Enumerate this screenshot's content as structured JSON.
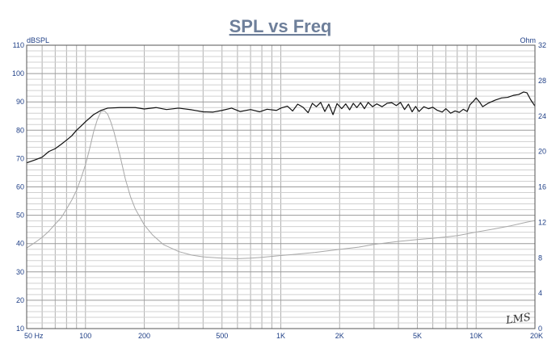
{
  "chart_data": {
    "type": "line",
    "title": "SPL vs Freq",
    "xscale": "log",
    "xlim": [
      50,
      20000
    ],
    "ylim_left": [
      10,
      110
    ],
    "ylim_right": [
      0,
      32
    ],
    "ylabel_left": "dBSPL",
    "ylabel_right": "Ohm",
    "grid": true,
    "x_ticks": [
      {
        "value": 50,
        "label": "50  Hz"
      },
      {
        "value": 100,
        "label": "100"
      },
      {
        "value": 200,
        "label": "200"
      },
      {
        "value": 500,
        "label": "500"
      },
      {
        "value": 1000,
        "label": "1K"
      },
      {
        "value": 2000,
        "label": "2K"
      },
      {
        "value": 5000,
        "label": "5K"
      },
      {
        "value": 10000,
        "label": "10K"
      },
      {
        "value": 20000,
        "label": "20K"
      }
    ],
    "y_ticks_left": [
      10,
      20,
      30,
      40,
      50,
      60,
      70,
      80,
      90,
      100,
      110
    ],
    "y_ticks_right": [
      0,
      4,
      8,
      12,
      16,
      20,
      24,
      28,
      32
    ],
    "watermark": "LMS",
    "series": [
      {
        "axis": "left",
        "color": "#111111",
        "points": [
          [
            50,
            68.5
          ],
          [
            55,
            69.5
          ],
          [
            60,
            70.5
          ],
          [
            65,
            72.5
          ],
          [
            70,
            73.5
          ],
          [
            75,
            75
          ],
          [
            80,
            76.5
          ],
          [
            85,
            78
          ],
          [
            90,
            80
          ],
          [
            95,
            81.5
          ],
          [
            100,
            83
          ],
          [
            110,
            85.5
          ],
          [
            120,
            87
          ],
          [
            130,
            87.8
          ],
          [
            150,
            88
          ],
          [
            180,
            88
          ],
          [
            200,
            87.5
          ],
          [
            230,
            88
          ],
          [
            260,
            87.3
          ],
          [
            300,
            87.8
          ],
          [
            350,
            87.2
          ],
          [
            400,
            86.5
          ],
          [
            450,
            86.4
          ],
          [
            500,
            87
          ],
          [
            560,
            87.8
          ],
          [
            620,
            86.6
          ],
          [
            700,
            87.3
          ],
          [
            780,
            86.5
          ],
          [
            850,
            87.4
          ],
          [
            950,
            87
          ],
          [
            1000,
            87.8
          ],
          [
            1080,
            88.5
          ],
          [
            1150,
            86.8
          ],
          [
            1220,
            89.2
          ],
          [
            1300,
            88.1
          ],
          [
            1380,
            86.2
          ],
          [
            1450,
            89.5
          ],
          [
            1520,
            88.3
          ],
          [
            1600,
            89.8
          ],
          [
            1680,
            86.6
          ],
          [
            1760,
            89.2
          ],
          [
            1850,
            85.5
          ],
          [
            1940,
            89.4
          ],
          [
            2050,
            87.6
          ],
          [
            2150,
            89.3
          ],
          [
            2250,
            87.2
          ],
          [
            2350,
            89.5
          ],
          [
            2450,
            88
          ],
          [
            2560,
            89.7
          ],
          [
            2680,
            87.6
          ],
          [
            2800,
            89.8
          ],
          [
            2950,
            88.3
          ],
          [
            3100,
            89.3
          ],
          [
            3300,
            88.3
          ],
          [
            3500,
            89.5
          ],
          [
            3700,
            89.7
          ],
          [
            3900,
            88.7
          ],
          [
            4100,
            89.8
          ],
          [
            4300,
            87.3
          ],
          [
            4500,
            89.2
          ],
          [
            4700,
            86.5
          ],
          [
            4900,
            88.4
          ],
          [
            5100,
            86.6
          ],
          [
            5400,
            88.3
          ],
          [
            5700,
            87.6
          ],
          [
            6000,
            88.1
          ],
          [
            6300,
            87.1
          ],
          [
            6700,
            86.4
          ],
          [
            7000,
            87.6
          ],
          [
            7400,
            86
          ],
          [
            7800,
            86.8
          ],
          [
            8200,
            86.3
          ],
          [
            8600,
            87.4
          ],
          [
            9000,
            86.6
          ],
          [
            9300,
            89
          ],
          [
            9700,
            90.3
          ],
          [
            10000,
            91.4
          ],
          [
            10400,
            90
          ],
          [
            10800,
            88.3
          ],
          [
            11500,
            89.5
          ],
          [
            12500,
            90.6
          ],
          [
            13500,
            91.4
          ],
          [
            14500,
            91.6
          ],
          [
            15500,
            92.3
          ],
          [
            16500,
            92.6
          ],
          [
            17500,
            93.5
          ],
          [
            18200,
            93.2
          ],
          [
            19000,
            90.8
          ],
          [
            20000,
            88.5
          ]
        ]
      },
      {
        "axis": "right",
        "color": "#a8a8a8",
        "points": [
          [
            50,
            9.1
          ],
          [
            55,
            9.7
          ],
          [
            60,
            10.3
          ],
          [
            65,
            11
          ],
          [
            70,
            11.8
          ],
          [
            75,
            12.5
          ],
          [
            80,
            13.5
          ],
          [
            85,
            14.5
          ],
          [
            90,
            15.6
          ],
          [
            95,
            17
          ],
          [
            100,
            18.5
          ],
          [
            105,
            20.3
          ],
          [
            110,
            22.2
          ],
          [
            115,
            23.6
          ],
          [
            120,
            24.5
          ],
          [
            125,
            24.6
          ],
          [
            130,
            24.2
          ],
          [
            135,
            23.3
          ],
          [
            140,
            22.2
          ],
          [
            150,
            19.6
          ],
          [
            160,
            16.9
          ],
          [
            170,
            14.9
          ],
          [
            180,
            13.5
          ],
          [
            200,
            11.7
          ],
          [
            220,
            10.6
          ],
          [
            250,
            9.5
          ],
          [
            300,
            8.7
          ],
          [
            350,
            8.3
          ],
          [
            400,
            8.1
          ],
          [
            500,
            7.95
          ],
          [
            600,
            7.9
          ],
          [
            700,
            7.95
          ],
          [
            800,
            8.05
          ],
          [
            1000,
            8.25
          ],
          [
            1200,
            8.4
          ],
          [
            1500,
            8.6
          ],
          [
            2000,
            8.95
          ],
          [
            2500,
            9.2
          ],
          [
            3000,
            9.5
          ],
          [
            4000,
            9.85
          ],
          [
            5000,
            10.05
          ],
          [
            6000,
            10.2
          ],
          [
            7000,
            10.35
          ],
          [
            8000,
            10.5
          ],
          [
            9000,
            10.7
          ],
          [
            10000,
            10.9
          ],
          [
            12000,
            11.2
          ],
          [
            15000,
            11.6
          ],
          [
            18000,
            12
          ],
          [
            20000,
            12.2
          ]
        ]
      }
    ]
  }
}
